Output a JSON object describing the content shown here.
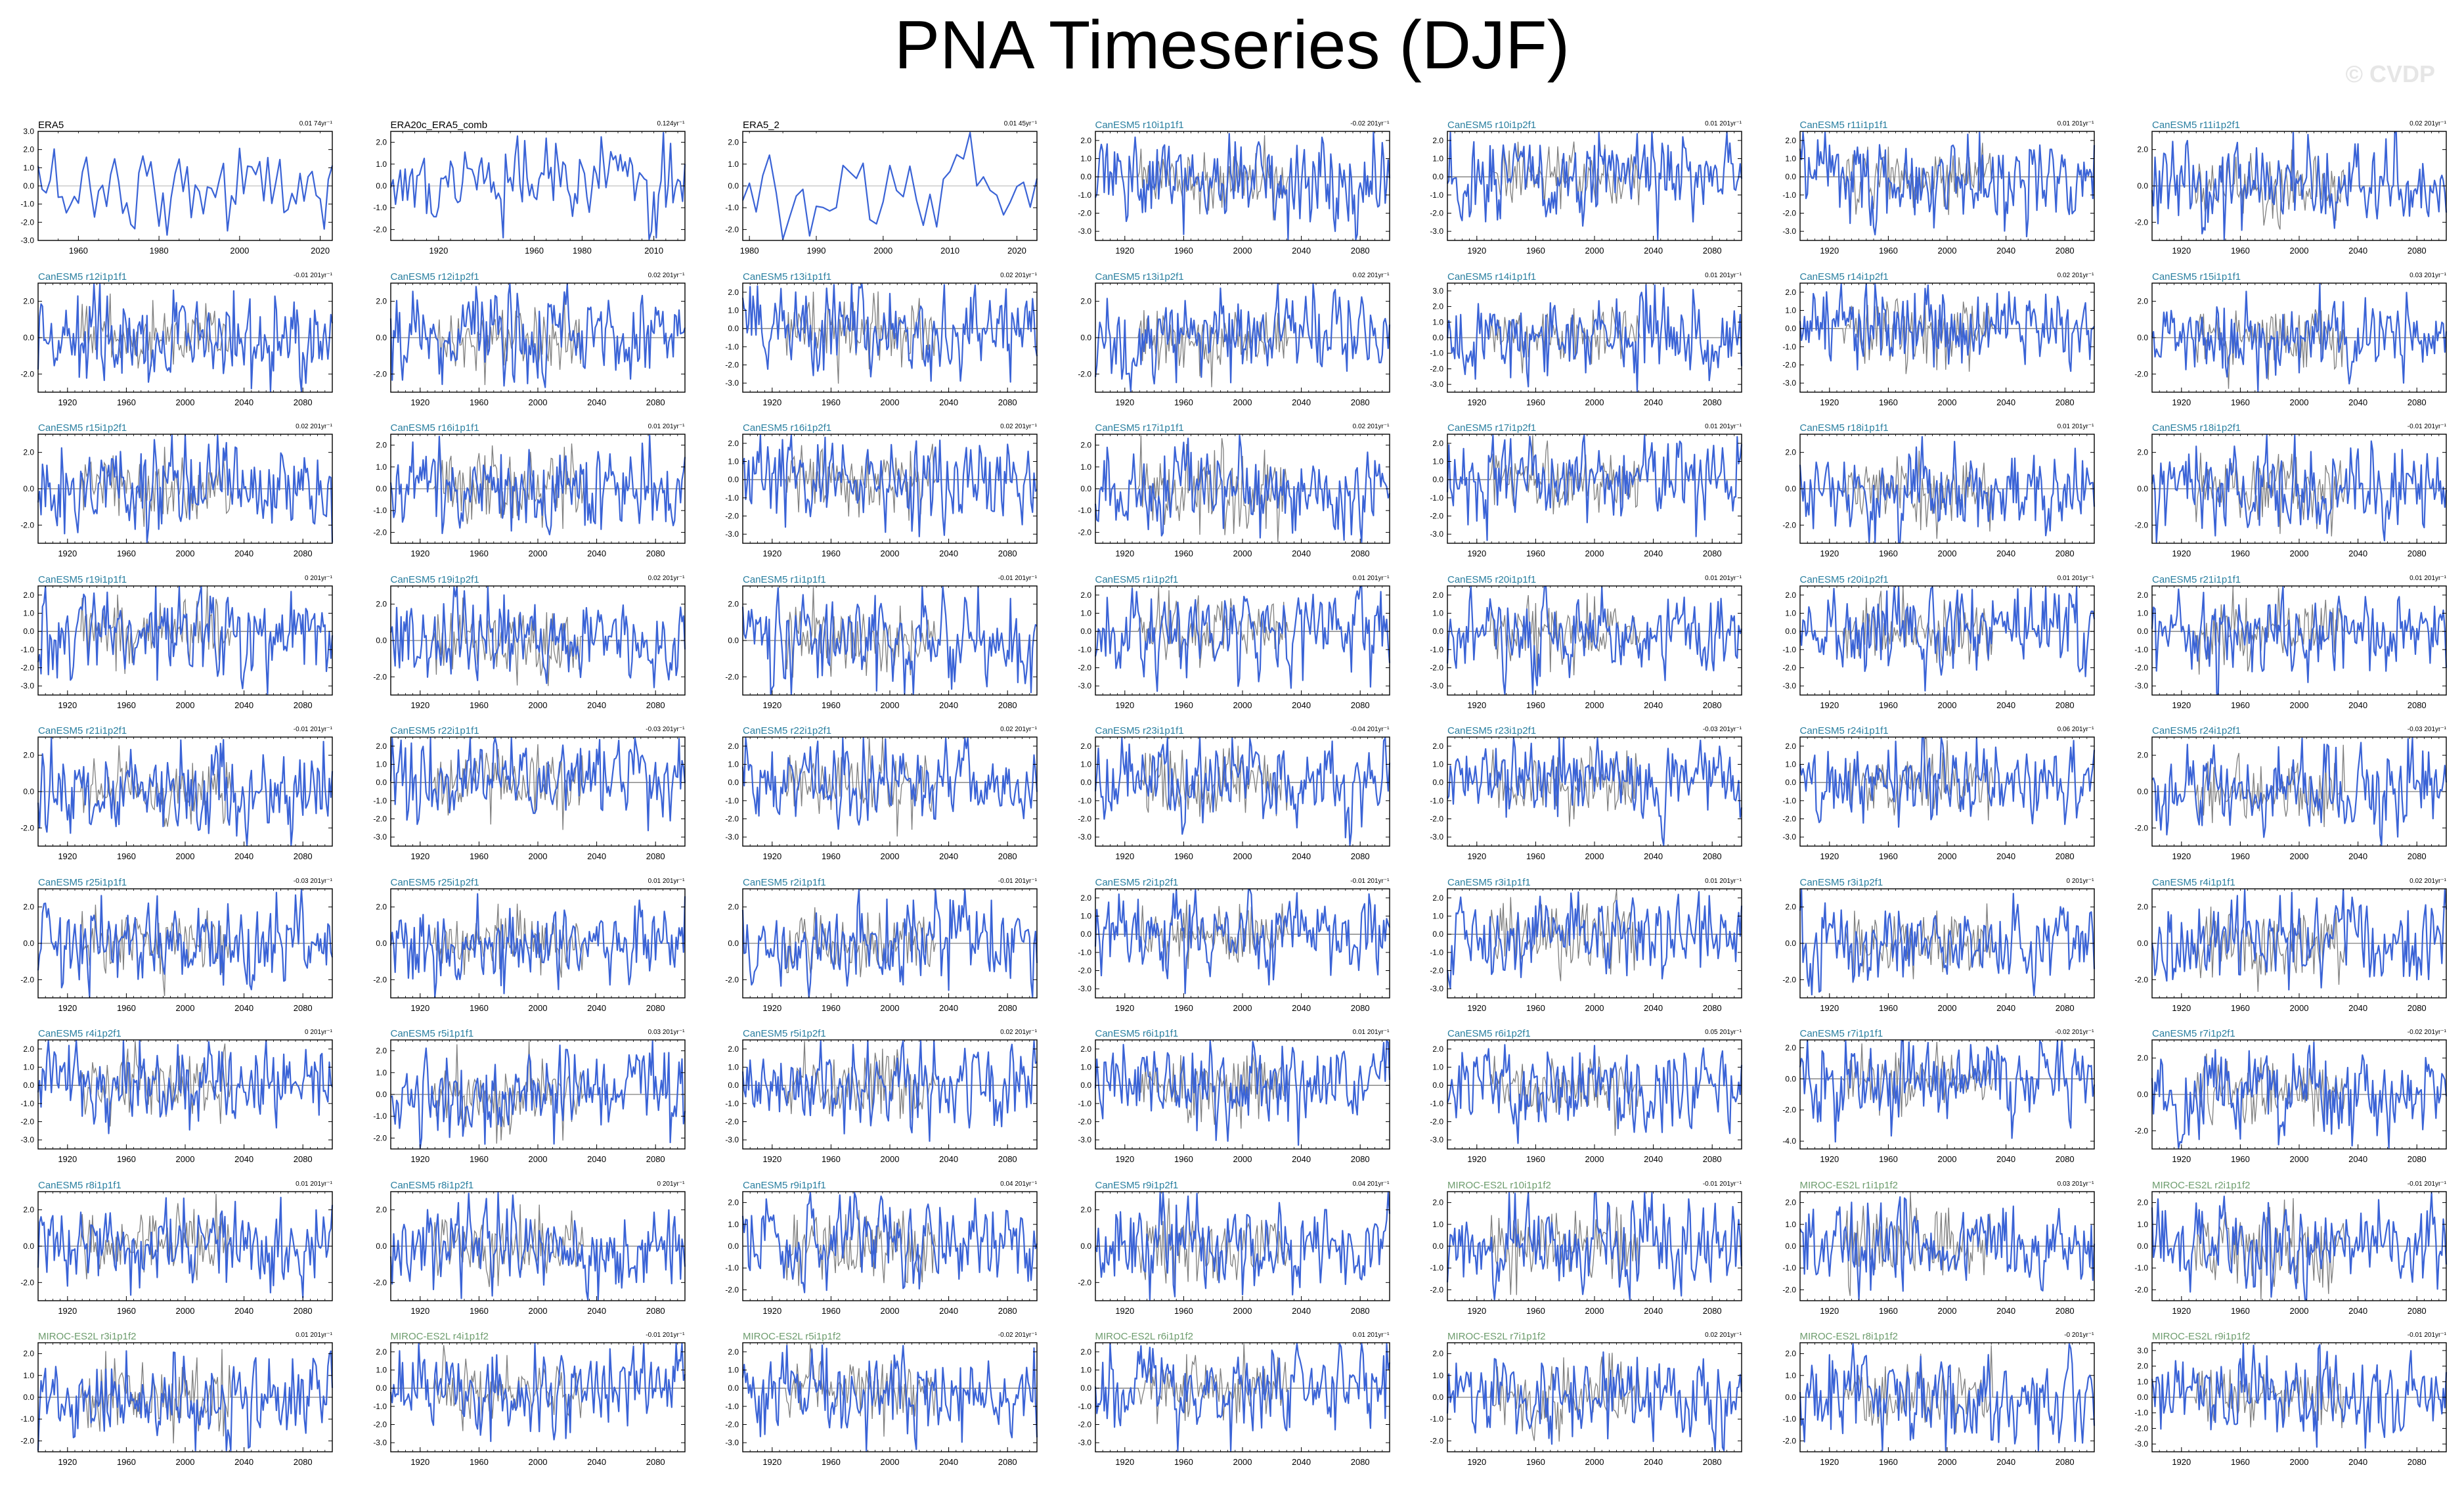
{
  "title": "PNA Timeseries (DJF)",
  "watermark": "© CVDP",
  "colors": {
    "line": "#3a63d6",
    "ensemble": "#7f7f7f",
    "obs_title": "#000000",
    "canesm_title": "#2a7fa0",
    "miroc_title": "#6d9c6d"
  },
  "chart_data": [
    {
      "type": "line",
      "title": "ERA5",
      "trend": "0.01 74yr⁻¹",
      "years": [
        1950,
        2023
      ],
      "xticks": [
        1960,
        1980,
        2000,
        2020
      ],
      "yticks": [
        "3.0",
        "2.0",
        "1.0",
        "0.0",
        "-1.0",
        "-2.0",
        "-3.0"
      ],
      "ylim": [
        -3.0,
        3.0
      ],
      "ensemble": false,
      "title_color": "obs"
    },
    {
      "type": "line",
      "title": "ERA20c_ERA5_comb",
      "trend": "0.124yr⁻¹",
      "years": [
        1900,
        2023
      ],
      "xticks": [
        1920,
        1960,
        1980,
        2010
      ],
      "yticks": [
        "2.0",
        "1.0",
        "0.0",
        "-1.0",
        "-2.0"
      ],
      "ylim": [
        -2.5,
        2.5
      ],
      "ensemble": false,
      "title_color": "obs"
    },
    {
      "type": "line",
      "title": "ERA5_2",
      "trend": "0.01 45yr⁻¹",
      "years": [
        1979,
        2023
      ],
      "xticks": [
        1980,
        1990,
        2000,
        2010,
        2020
      ],
      "yticks": [
        "2.0",
        "1.0",
        "0.0",
        "-1.0",
        "-2.0"
      ],
      "ylim": [
        -2.5,
        2.5
      ],
      "ensemble": false,
      "title_color": "obs"
    },
    {
      "type": "line",
      "title": "CanESM5 r10i1p1f1",
      "trend": "-0.02 201yr⁻¹",
      "yticks": [
        "2.0",
        "1.0",
        "0.0",
        "-1.0",
        "-2.0",
        "-3.0"
      ],
      "ylim": [
        -3.5,
        2.5
      ],
      "title_color": "canesm"
    },
    {
      "type": "line",
      "title": "CanESM5 r10i1p2f1",
      "trend": "0.01 201yr⁻¹",
      "yticks": [
        "2.0",
        "1.0",
        "0.0",
        "-1.0",
        "-2.0",
        "-3.0"
      ],
      "ylim": [
        -3.5,
        2.5
      ],
      "title_color": "canesm"
    },
    {
      "type": "line",
      "title": "CanESM5 r11i1p1f1",
      "trend": "0.01 201yr⁻¹",
      "yticks": [
        "2.0",
        "1.0",
        "0.0",
        "-1.0",
        "-2.0",
        "-3.0"
      ],
      "ylim": [
        -3.5,
        2.5
      ],
      "title_color": "canesm"
    },
    {
      "type": "line",
      "title": "CanESM5 r11i1p2f1",
      "trend": "0.02 201yr⁻¹",
      "yticks": [
        "2.0",
        "0.0",
        "-2.0"
      ],
      "ylim": [
        -3.0,
        3.0
      ],
      "title_color": "canesm"
    },
    {
      "type": "line",
      "title": "CanESM5 r12i1p1f1",
      "trend": "-0.01 201yr⁻¹",
      "yticks": [
        "2.0",
        "0.0",
        "-2.0"
      ],
      "ylim": [
        -3.0,
        3.0
      ],
      "title_color": "canesm"
    },
    {
      "type": "line",
      "title": "CanESM5 r12i1p2f1",
      "trend": "0.02 201yr⁻¹",
      "yticks": [
        "2.0",
        "0.0",
        "-2.0"
      ],
      "ylim": [
        -3.0,
        3.0
      ],
      "title_color": "canesm"
    },
    {
      "type": "line",
      "title": "CanESM5 r13i1p1f1",
      "trend": "0.02 201yr⁻¹",
      "yticks": [
        "2.0",
        "1.0",
        "0.0",
        "-1.0",
        "-2.0",
        "-3.0"
      ],
      "ylim": [
        -3.5,
        2.5
      ],
      "title_color": "canesm"
    },
    {
      "type": "line",
      "title": "CanESM5 r13i1p2f1",
      "trend": "0.02 201yr⁻¹",
      "yticks": [
        "2.0",
        "0.0",
        "-2.0"
      ],
      "ylim": [
        -3.0,
        3.0
      ],
      "title_color": "canesm"
    },
    {
      "type": "line",
      "title": "CanESM5 r14i1p1f1",
      "trend": "0.01 201yr⁻¹",
      "yticks": [
        "3.0",
        "2.0",
        "1.0",
        "0.0",
        "-1.0",
        "-2.0",
        "-3.0"
      ],
      "ylim": [
        -3.5,
        3.5
      ],
      "title_color": "canesm"
    },
    {
      "type": "line",
      "title": "CanESM5 r14i1p2f1",
      "trend": "0.02 201yr⁻¹",
      "yticks": [
        "2.0",
        "1.0",
        "0.0",
        "-1.0",
        "-2.0",
        "-3.0"
      ],
      "ylim": [
        -3.5,
        2.5
      ],
      "title_color": "canesm"
    },
    {
      "type": "line",
      "title": "CanESM5 r15i1p1f1",
      "trend": "0.03 201yr⁻¹",
      "yticks": [
        "2.0",
        "0.0",
        "-2.0"
      ],
      "ylim": [
        -3.0,
        3.0
      ],
      "title_color": "canesm"
    },
    {
      "type": "line",
      "title": "CanESM5 r15i1p2f1",
      "trend": "0.02 201yr⁻¹",
      "yticks": [
        "2.0",
        "0.0",
        "-2.0"
      ],
      "ylim": [
        -3.0,
        3.0
      ],
      "title_color": "canesm"
    },
    {
      "type": "line",
      "title": "CanESM5 r16i1p1f1",
      "trend": "0.01 201yr⁻¹",
      "yticks": [
        "2.0",
        "1.0",
        "0.0",
        "-1.0",
        "-2.0"
      ],
      "ylim": [
        -2.5,
        2.5
      ],
      "title_color": "canesm"
    },
    {
      "type": "line",
      "title": "CanESM5 r16i1p2f1",
      "trend": "0.02 201yr⁻¹",
      "yticks": [
        "2.0",
        "1.0",
        "0.0",
        "-1.0",
        "-2.0",
        "-3.0"
      ],
      "ylim": [
        -3.5,
        2.5
      ],
      "title_color": "canesm"
    },
    {
      "type": "line",
      "title": "CanESM5 r17i1p1f1",
      "trend": "0.02 201yr⁻¹",
      "yticks": [
        "2.0",
        "1.0",
        "0.0",
        "-1.0",
        "-2.0"
      ],
      "ylim": [
        -2.5,
        2.5
      ],
      "title_color": "canesm"
    },
    {
      "type": "line",
      "title": "CanESM5 r17i1p2f1",
      "trend": "0.01 201yr⁻¹",
      "yticks": [
        "2.0",
        "1.0",
        "0.0",
        "-1.0",
        "-2.0",
        "-3.0"
      ],
      "ylim": [
        -3.5,
        2.5
      ],
      "title_color": "canesm"
    },
    {
      "type": "line",
      "title": "CanESM5 r18i1p1f1",
      "trend": "0.01 201yr⁻¹",
      "yticks": [
        "2.0",
        "0.0",
        "-2.0"
      ],
      "ylim": [
        -3.0,
        3.0
      ],
      "title_color": "canesm"
    },
    {
      "type": "line",
      "title": "CanESM5 r18i1p2f1",
      "trend": "-0.01 201yr⁻¹",
      "yticks": [
        "2.0",
        "0.0",
        "-2.0"
      ],
      "ylim": [
        -3.0,
        3.0
      ],
      "title_color": "canesm"
    },
    {
      "type": "line",
      "title": "CanESM5 r19i1p1f1",
      "trend": "0 201yr⁻¹",
      "yticks": [
        "2.0",
        "1.0",
        "0.0",
        "-1.0",
        "-2.0",
        "-3.0"
      ],
      "ylim": [
        -3.5,
        2.5
      ],
      "title_color": "canesm"
    },
    {
      "type": "line",
      "title": "CanESM5 r19i1p2f1",
      "trend": "0.02 201yr⁻¹",
      "yticks": [
        "2.0",
        "0.0",
        "-2.0"
      ],
      "ylim": [
        -3.0,
        3.0
      ],
      "title_color": "canesm"
    },
    {
      "type": "line",
      "title": "CanESM5 r1i1p1f1",
      "trend": "-0.01 201yr⁻¹",
      "yticks": [
        "2.0",
        "0.0",
        "-2.0"
      ],
      "ylim": [
        -3.0,
        3.0
      ],
      "title_color": "canesm"
    },
    {
      "type": "line",
      "title": "CanESM5 r1i1p2f1",
      "trend": "0.01 201yr⁻¹",
      "yticks": [
        "2.0",
        "1.0",
        "0.0",
        "-1.0",
        "-2.0",
        "-3.0"
      ],
      "ylim": [
        -3.5,
        2.5
      ],
      "title_color": "canesm"
    },
    {
      "type": "line",
      "title": "CanESM5 r20i1p1f1",
      "trend": "0.01 201yr⁻¹",
      "yticks": [
        "2.0",
        "1.0",
        "0.0",
        "-1.0",
        "-2.0",
        "-3.0"
      ],
      "ylim": [
        -3.5,
        2.5
      ],
      "title_color": "canesm"
    },
    {
      "type": "line",
      "title": "CanESM5 r20i1p2f1",
      "trend": "0.01 201yr⁻¹",
      "yticks": [
        "2.0",
        "1.0",
        "0.0",
        "-1.0",
        "-2.0",
        "-3.0"
      ],
      "ylim": [
        -3.5,
        2.5
      ],
      "title_color": "canesm"
    },
    {
      "type": "line",
      "title": "CanESM5 r21i1p1f1",
      "trend": "0.01 201yr⁻¹",
      "yticks": [
        "2.0",
        "1.0",
        "0.0",
        "-1.0",
        "-2.0",
        "-3.0"
      ],
      "ylim": [
        -3.5,
        2.5
      ],
      "title_color": "canesm"
    },
    {
      "type": "line",
      "title": "CanESM5 r21i1p2f1",
      "trend": "-0.01 201yr⁻¹",
      "yticks": [
        "2.0",
        "0.0",
        "-2.0"
      ],
      "ylim": [
        -3.0,
        3.0
      ],
      "title_color": "canesm"
    },
    {
      "type": "line",
      "title": "CanESM5 r22i1p1f1",
      "trend": "-0.03 201yr⁻¹",
      "yticks": [
        "2.0",
        "1.0",
        "0.0",
        "-1.0",
        "-2.0",
        "-3.0"
      ],
      "ylim": [
        -3.5,
        2.5
      ],
      "title_color": "canesm"
    },
    {
      "type": "line",
      "title": "CanESM5 r22i1p2f1",
      "trend": "0.02 201yr⁻¹",
      "yticks": [
        "2.0",
        "1.0",
        "0.0",
        "-1.0",
        "-2.0",
        "-3.0"
      ],
      "ylim": [
        -3.5,
        2.5
      ],
      "title_color": "canesm"
    },
    {
      "type": "line",
      "title": "CanESM5 r23i1p1f1",
      "trend": "-0.04 201yr⁻¹",
      "yticks": [
        "2.0",
        "1.0",
        "0.0",
        "-1.0",
        "-2.0",
        "-3.0"
      ],
      "ylim": [
        -3.5,
        2.5
      ],
      "title_color": "canesm"
    },
    {
      "type": "line",
      "title": "CanESM5 r23i1p2f1",
      "trend": "-0.03 201yr⁻¹",
      "yticks": [
        "2.0",
        "1.0",
        "0.0",
        "-1.0",
        "-2.0",
        "-3.0"
      ],
      "ylim": [
        -3.5,
        2.5
      ],
      "title_color": "canesm"
    },
    {
      "type": "line",
      "title": "CanESM5 r24i1p1f1",
      "trend": "0.06 201yr⁻¹",
      "yticks": [
        "2.0",
        "1.0",
        "0.0",
        "-1.0",
        "-2.0",
        "-3.0"
      ],
      "ylim": [
        -3.5,
        2.5
      ],
      "title_color": "canesm"
    },
    {
      "type": "line",
      "title": "CanESM5 r24i1p2f1",
      "trend": "-0.03 201yr⁻¹",
      "yticks": [
        "2.0",
        "0.0",
        "-2.0"
      ],
      "ylim": [
        -3.0,
        3.0
      ],
      "title_color": "canesm"
    },
    {
      "type": "line",
      "title": "CanESM5 r25i1p1f1",
      "trend": "-0.03 201yr⁻¹",
      "yticks": [
        "2.0",
        "0.0",
        "-2.0"
      ],
      "ylim": [
        -3.0,
        3.0
      ],
      "title_color": "canesm"
    },
    {
      "type": "line",
      "title": "CanESM5 r25i1p2f1",
      "trend": "0.01 201yr⁻¹",
      "yticks": [
        "2.0",
        "0.0",
        "-2.0"
      ],
      "ylim": [
        -3.0,
        3.0
      ],
      "title_color": "canesm"
    },
    {
      "type": "line",
      "title": "CanESM5 r2i1p1f1",
      "trend": "-0.01 201yr⁻¹",
      "yticks": [
        "2.0",
        "0.0",
        "-2.0"
      ],
      "ylim": [
        -3.0,
        3.0
      ],
      "title_color": "canesm"
    },
    {
      "type": "line",
      "title": "CanESM5 r2i1p2f1",
      "trend": "-0.01 201yr⁻¹",
      "yticks": [
        "2.0",
        "1.0",
        "0.0",
        "-1.0",
        "-2.0",
        "-3.0"
      ],
      "ylim": [
        -3.5,
        2.5
      ],
      "title_color": "canesm"
    },
    {
      "type": "line",
      "title": "CanESM5 r3i1p1f1",
      "trend": "0.01 201yr⁻¹",
      "yticks": [
        "2.0",
        "1.0",
        "0.0",
        "-1.0",
        "-2.0",
        "-3.0"
      ],
      "ylim": [
        -3.5,
        2.5
      ],
      "title_color": "canesm"
    },
    {
      "type": "line",
      "title": "CanESM5 r3i1p2f1",
      "trend": "0 201yr⁻¹",
      "yticks": [
        "2.0",
        "0.0",
        "-2.0"
      ],
      "ylim": [
        -3.0,
        3.0
      ],
      "title_color": "canesm"
    },
    {
      "type": "line",
      "title": "CanESM5 r4i1p1f1",
      "trend": "0.02 201yr⁻¹",
      "yticks": [
        "2.0",
        "0.0",
        "-2.0"
      ],
      "ylim": [
        -3.0,
        3.0
      ],
      "title_color": "canesm"
    },
    {
      "type": "line",
      "title": "CanESM5 r4i1p2f1",
      "trend": "0 201yr⁻¹",
      "yticks": [
        "2.0",
        "1.0",
        "0.0",
        "-1.0",
        "-2.0",
        "-3.0"
      ],
      "ylim": [
        -3.5,
        2.5
      ],
      "title_color": "canesm"
    },
    {
      "type": "line",
      "title": "CanESM5 r5i1p1f1",
      "trend": "0.03 201yr⁻¹",
      "yticks": [
        "2.0",
        "1.0",
        "0.0",
        "-1.0",
        "-2.0"
      ],
      "ylim": [
        -2.5,
        2.5
      ],
      "title_color": "canesm"
    },
    {
      "type": "line",
      "title": "CanESM5 r5i1p2f1",
      "trend": "0.02 201yr⁻¹",
      "yticks": [
        "2.0",
        "1.0",
        "0.0",
        "-1.0",
        "-2.0",
        "-3.0"
      ],
      "ylim": [
        -3.5,
        2.5
      ],
      "title_color": "canesm"
    },
    {
      "type": "line",
      "title": "CanESM5 r6i1p1f1",
      "trend": "0.01 201yr⁻¹",
      "yticks": [
        "2.0",
        "1.0",
        "0.0",
        "-1.0",
        "-2.0",
        "-3.0"
      ],
      "ylim": [
        -3.5,
        2.5
      ],
      "title_color": "canesm"
    },
    {
      "type": "line",
      "title": "CanESM5 r6i1p2f1",
      "trend": "0.05 201yr⁻¹",
      "yticks": [
        "2.0",
        "1.0",
        "0.0",
        "-1.0",
        "-2.0",
        "-3.0"
      ],
      "ylim": [
        -3.5,
        2.5
      ],
      "title_color": "canesm"
    },
    {
      "type": "line",
      "title": "CanESM5 r7i1p1f1",
      "trend": "-0.02 201yr⁻¹",
      "yticks": [
        "2.0",
        "0.0",
        "-2.0",
        "-4.0"
      ],
      "ylim": [
        -4.5,
        2.5
      ],
      "title_color": "canesm"
    },
    {
      "type": "line",
      "title": "CanESM5 r7i1p2f1",
      "trend": "-0.02 201yr⁻¹",
      "yticks": [
        "2.0",
        "0.0",
        "-2.0"
      ],
      "ylim": [
        -3.0,
        3.0
      ],
      "title_color": "canesm"
    },
    {
      "type": "line",
      "title": "CanESM5 r8i1p1f1",
      "trend": "0.01 201yr⁻¹",
      "yticks": [
        "2.0",
        "0.0",
        "-2.0"
      ],
      "ylim": [
        -3.0,
        3.0
      ],
      "title_color": "canesm"
    },
    {
      "type": "line",
      "title": "CanESM5 r8i1p2f1",
      "trend": "0 201yr⁻¹",
      "yticks": [
        "2.0",
        "0.0",
        "-2.0"
      ],
      "ylim": [
        -3.0,
        3.0
      ],
      "title_color": "canesm"
    },
    {
      "type": "line",
      "title": "CanESM5 r9i1p1f1",
      "trend": "0.04 201yr⁻¹",
      "yticks": [
        "2.0",
        "1.0",
        "0.0",
        "-1.0",
        "-2.0"
      ],
      "ylim": [
        -2.5,
        2.5
      ],
      "title_color": "canesm"
    },
    {
      "type": "line",
      "title": "CanESM5 r9i1p2f1",
      "trend": "0.04 201yr⁻¹",
      "yticks": [
        "2.0",
        "0.0",
        "-2.0"
      ],
      "ylim": [
        -3.0,
        3.0
      ],
      "title_color": "canesm"
    },
    {
      "type": "line",
      "title": "MIROC-ES2L r10i1p1f2",
      "trend": "-0.01 201yr⁻¹",
      "yticks": [
        "2.0",
        "1.0",
        "0.0",
        "-1.0",
        "-2.0"
      ],
      "ylim": [
        -2.5,
        2.5
      ],
      "title_color": "miroc"
    },
    {
      "type": "line",
      "title": "MIROC-ES2L r1i1p1f2",
      "trend": "0.03 201yr⁻¹",
      "yticks": [
        "2.0",
        "1.0",
        "0.0",
        "-1.0",
        "-2.0"
      ],
      "ylim": [
        -2.5,
        2.5
      ],
      "title_color": "miroc"
    },
    {
      "type": "line",
      "title": "MIROC-ES2L r2i1p1f2",
      "trend": "-0.01 201yr⁻¹",
      "yticks": [
        "2.0",
        "1.0",
        "0.0",
        "-1.0",
        "-2.0"
      ],
      "ylim": [
        -2.5,
        2.5
      ],
      "title_color": "miroc"
    },
    {
      "type": "line",
      "title": "MIROC-ES2L r3i1p1f2",
      "trend": "0.01 201yr⁻¹",
      "yticks": [
        "2.0",
        "1.0",
        "0.0",
        "-1.0",
        "-2.0"
      ],
      "ylim": [
        -2.5,
        2.5
      ],
      "title_color": "miroc"
    },
    {
      "type": "line",
      "title": "MIROC-ES2L r4i1p1f2",
      "trend": "-0.01 201yr⁻¹",
      "yticks": [
        "2.0",
        "1.0",
        "0.0",
        "-1.0",
        "-2.0",
        "-3.0"
      ],
      "ylim": [
        -3.5,
        2.5
      ],
      "title_color": "miroc"
    },
    {
      "type": "line",
      "title": "MIROC-ES2L r5i1p1f2",
      "trend": "-0.02 201yr⁻¹",
      "yticks": [
        "2.0",
        "1.0",
        "0.0",
        "-1.0",
        "-2.0",
        "-3.0"
      ],
      "ylim": [
        -3.5,
        2.5
      ],
      "title_color": "miroc"
    },
    {
      "type": "line",
      "title": "MIROC-ES2L r6i1p1f2",
      "trend": "0.01 201yr⁻¹",
      "yticks": [
        "2.0",
        "1.0",
        "0.0",
        "-1.0",
        "-2.0",
        "-3.0"
      ],
      "ylim": [
        -3.5,
        2.5
      ],
      "title_color": "miroc"
    },
    {
      "type": "line",
      "title": "MIROC-ES2L r7i1p1f2",
      "trend": "0.02 201yr⁻¹",
      "yticks": [
        "2.0",
        "1.0",
        "0.0",
        "-1.0",
        "-2.0"
      ],
      "ylim": [
        -2.5,
        2.5
      ],
      "title_color": "miroc"
    },
    {
      "type": "line",
      "title": "MIROC-ES2L r8i1p1f2",
      "trend": "-0 201yr⁻¹",
      "yticks": [
        "2.0",
        "1.0",
        "0.0",
        "-1.0",
        "-2.0"
      ],
      "ylim": [
        -2.5,
        2.5
      ],
      "title_color": "miroc"
    },
    {
      "type": "line",
      "title": "MIROC-ES2L r9i1p1f2",
      "trend": "-0.01 201yr⁻¹",
      "yticks": [
        "3.0",
        "2.0",
        "1.0",
        "0.0",
        "-1.0",
        "-2.0",
        "-3.0"
      ],
      "ylim": [
        -3.5,
        3.5
      ],
      "title_color": "miroc"
    }
  ],
  "model_defaults": {
    "years": [
      1900,
      2100
    ],
    "xticks": [
      1920,
      1960,
      2000,
      2040,
      2080
    ],
    "ensemble": true
  }
}
